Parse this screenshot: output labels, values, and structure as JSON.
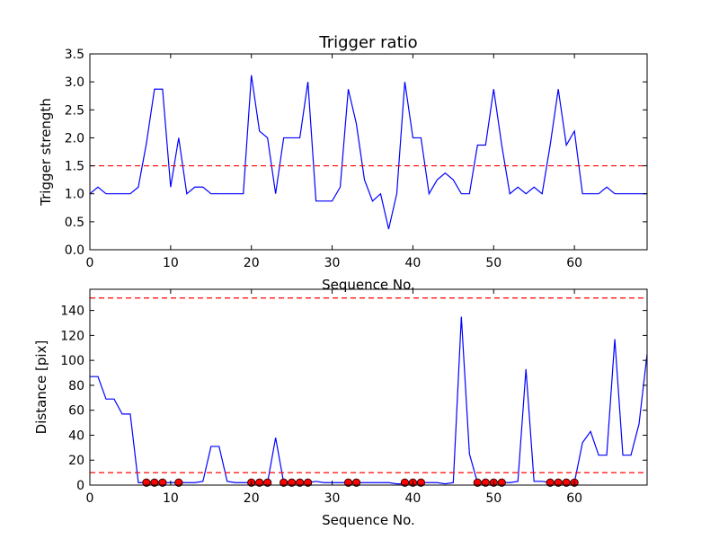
{
  "chart_data": [
    {
      "type": "line",
      "title": "Trigger ratio",
      "xlabel": "Sequence No.",
      "ylabel": "Trigger strength",
      "xlim": [
        0,
        69
      ],
      "ylim": [
        0,
        3.5
      ],
      "xticks": [
        0,
        10,
        20,
        30,
        40,
        50,
        60
      ],
      "yticks": [
        0.0,
        0.5,
        1.0,
        1.5,
        2.0,
        2.5,
        3.0,
        3.5
      ],
      "ytick_labels": [
        "0.0",
        "0.5",
        "1.0",
        "1.5",
        "2.0",
        "2.5",
        "3.0",
        "3.5"
      ],
      "grid": false,
      "series": [
        {
          "color": "#0000ff",
          "style": "line",
          "x": [
            0,
            1,
            2,
            3,
            4,
            5,
            6,
            7,
            8,
            9,
            10,
            11,
            12,
            13,
            14,
            15,
            16,
            17,
            18,
            19,
            20,
            21,
            22,
            23,
            24,
            25,
            26,
            27,
            28,
            29,
            30,
            31,
            32,
            33,
            34,
            35,
            36,
            37,
            38,
            39,
            40,
            41,
            42,
            43,
            44,
            45,
            46,
            47,
            48,
            49,
            50,
            51,
            52,
            53,
            54,
            55,
            56,
            57,
            58,
            59,
            60,
            61,
            62,
            63,
            64,
            65,
            66,
            67,
            68,
            69
          ],
          "values": [
            1.0,
            1.12,
            1.0,
            1.0,
            1.0,
            1.0,
            1.12,
            1.9,
            2.87,
            2.87,
            1.12,
            2.0,
            1.0,
            1.12,
            1.12,
            1.0,
            1.0,
            1.0,
            1.0,
            1.0,
            3.12,
            2.12,
            2.0,
            1.0,
            2.0,
            2.0,
            2.0,
            3.0,
            0.87,
            0.87,
            0.87,
            1.12,
            2.87,
            2.25,
            1.25,
            0.87,
            1.0,
            0.37,
            1.0,
            3.0,
            2.0,
            2.0,
            1.0,
            1.25,
            1.37,
            1.25,
            1.0,
            1.0,
            1.87,
            1.87,
            2.87,
            1.87,
            1.0,
            1.12,
            1.0,
            1.12,
            1.0,
            1.87,
            2.87,
            1.87,
            2.12,
            1.0,
            1.0,
            1.0,
            1.12,
            1.0,
            1.0,
            1.0,
            1.0,
            1.0
          ]
        }
      ],
      "hlines": [
        {
          "y": 1.5,
          "color": "#ff0000",
          "style": "dashed"
        }
      ]
    },
    {
      "type": "line",
      "title": "",
      "xlabel": "Sequence No.",
      "ylabel": "Distance [pix]",
      "xlim": [
        0,
        69
      ],
      "ylim": [
        0,
        157
      ],
      "xticks": [
        0,
        10,
        20,
        30,
        40,
        50,
        60
      ],
      "yticks": [
        0,
        20,
        40,
        60,
        80,
        100,
        120,
        140
      ],
      "ytick_labels": [
        "0",
        "20",
        "40",
        "60",
        "80",
        "100",
        "120",
        "140"
      ],
      "grid": false,
      "series": [
        {
          "color": "#0000ff",
          "style": "line",
          "x": [
            0,
            1,
            2,
            3,
            4,
            5,
            6,
            7,
            8,
            9,
            10,
            11,
            12,
            13,
            14,
            15,
            16,
            17,
            18,
            19,
            20,
            21,
            22,
            23,
            24,
            25,
            26,
            27,
            28,
            29,
            30,
            31,
            32,
            33,
            34,
            35,
            36,
            37,
            38,
            39,
            40,
            41,
            42,
            43,
            44,
            45,
            46,
            47,
            48,
            49,
            50,
            51,
            52,
            53,
            54,
            55,
            56,
            57,
            58,
            59,
            60,
            61,
            62,
            63,
            64,
            65,
            66,
            67,
            68,
            69
          ],
          "values": [
            87,
            87,
            69,
            69,
            57,
            57,
            2,
            2,
            2,
            2,
            2,
            2,
            2,
            2,
            3,
            31,
            31,
            3,
            2,
            2,
            2,
            2,
            2,
            38,
            2,
            2,
            2,
            2,
            3,
            2,
            2,
            2,
            2,
            2,
            2,
            2,
            2,
            2,
            1,
            1,
            2,
            2,
            2,
            2,
            1,
            2,
            135,
            25,
            2,
            2,
            2,
            2,
            2,
            3,
            93,
            3,
            3,
            2,
            2,
            2,
            2,
            34,
            43,
            24,
            24,
            117,
            24,
            24,
            49,
            105
          ]
        },
        {
          "color": "#ff0000",
          "style": "markers",
          "x": [
            7,
            8,
            9,
            11,
            20,
            21,
            22,
            24,
            25,
            26,
            27,
            32,
            33,
            39,
            40,
            41,
            48,
            49,
            50,
            51,
            57,
            58,
            59,
            60
          ],
          "values": [
            2,
            2,
            2,
            2,
            2,
            2,
            2,
            2,
            2,
            2,
            2,
            2,
            2,
            2,
            2,
            2,
            2,
            2,
            2,
            2,
            2,
            2,
            2,
            2
          ]
        }
      ],
      "hlines": [
        {
          "y": 10,
          "color": "#ff0000",
          "style": "dashed"
        },
        {
          "y": 150,
          "color": "#ff0000",
          "style": "dashed"
        }
      ]
    }
  ]
}
